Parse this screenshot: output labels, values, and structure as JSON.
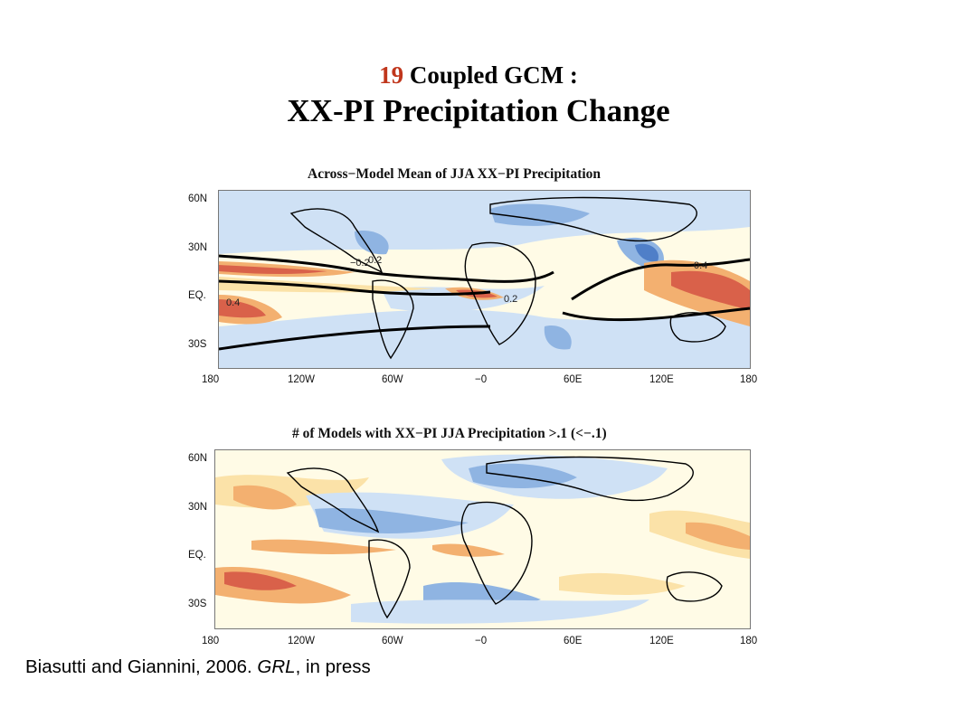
{
  "slide": {
    "title_number": "19",
    "title_rest": " Coupled GCM :",
    "subtitle": "XX-PI Precipitation Change",
    "citation": {
      "prefix": "Biasutti and Giannini, 2006. ",
      "journal": "GRL",
      "suffix": ", in press"
    }
  },
  "maps": [
    {
      "title": "Across−Model Mean of JJA XX−PI Precipitation",
      "lat_labels": [
        "60N",
        "30N",
        "EQ.",
        "30S"
      ],
      "lon_labels": [
        "180",
        "120W",
        "60W",
        "−0",
        "60E",
        "120E",
        "180"
      ],
      "contour_labels": [
        "−0.2",
        "0.4",
        "0.4",
        "0.2",
        "0.2"
      ]
    },
    {
      "title": "# of Models with XX−PI JJA Precipitation >.1 (<−.1)",
      "lat_labels": [
        "60N",
        "30N",
        "EQ.",
        "30S"
      ],
      "lon_labels": [
        "180",
        "120W",
        "60W",
        "−0",
        "60E",
        "120E",
        "180"
      ]
    }
  ],
  "colors": {
    "title_number": "#c0361c",
    "dry_strong": "#4f7fc8",
    "dry": "#8fb4e2",
    "dry_light": "#cfe1f5",
    "neutral": "#fffbe6",
    "wet_light": "#fbe2a8",
    "wet": "#f3b070",
    "wet_strong": "#d9614a",
    "land": "#000000"
  }
}
